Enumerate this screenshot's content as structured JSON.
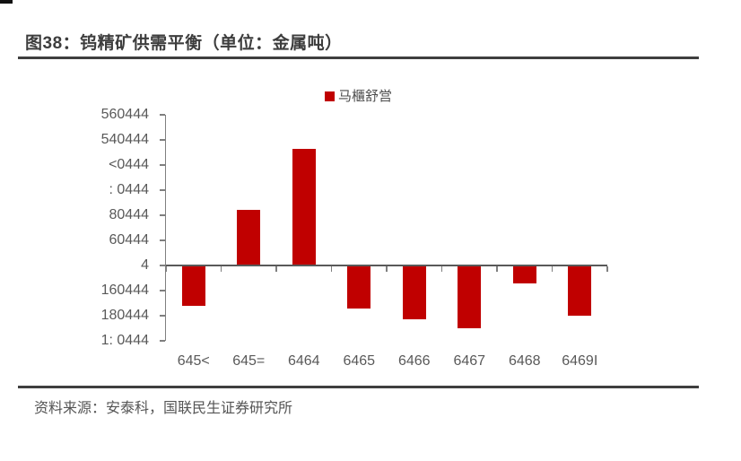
{
  "figure": {
    "title": "图38：钨精矿供需平衡（单位：金属吨）",
    "source": "资料来源：安泰科，国联民生证券研究所"
  },
  "chart_data": {
    "type": "bar",
    "title": "图38：钨精矿供需平衡（单位：金属吨）",
    "legend": {
      "label": "马櫃舒営",
      "color": "#c00000"
    },
    "legend_position": "top-center",
    "categories": [
      "645<",
      "645=",
      "6464",
      "6465",
      "6466",
      "6467",
      "6468",
      "6469I"
    ],
    "values": [
      -3200,
      4400,
      9300,
      -3400,
      -4300,
      -5000,
      -1400,
      -4000
    ],
    "y_ticks": [
      {
        "label": "560444",
        "value": 12000
      },
      {
        "label": "540444",
        "value": 10000
      },
      {
        "label": "<0444",
        "value": 8000
      },
      {
        "label": ": 0444",
        "value": 6000
      },
      {
        "label": "80444",
        "value": 4000
      },
      {
        "label": "60444",
        "value": 2000
      },
      {
        "label": "4",
        "value": 0
      },
      {
        "label": "160444",
        "value": -2000
      },
      {
        "label": "180444",
        "value": -4000
      },
      {
        "label": "1: 0444",
        "value": -6000
      }
    ],
    "ylim": [
      -6000,
      12000
    ],
    "grid": false,
    "bar_color": "#c00000",
    "axis_color": "#595959"
  }
}
